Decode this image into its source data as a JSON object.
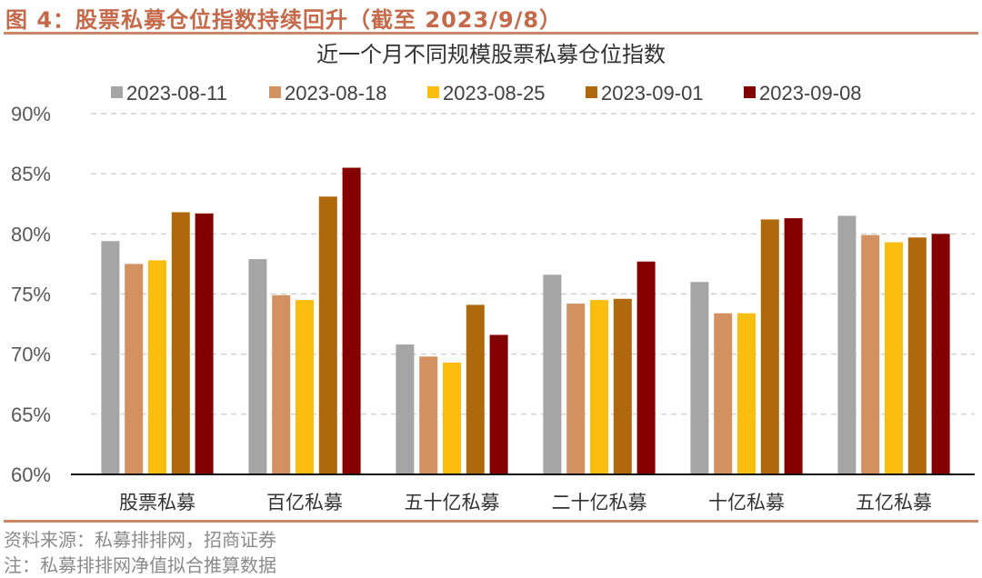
{
  "figure": {
    "title": "图 4：股票私募仓位指数持续回升（截至 2023/9/8）",
    "source": "资料来源：私募排排网，招商证券",
    "note": "注：私募排排网净值拟合推算数据"
  },
  "chart_data": {
    "type": "bar",
    "title": "近一个月不同规模股票私募仓位指数",
    "xlabel": "",
    "ylabel": "",
    "ylim": [
      60,
      90
    ],
    "yticks": [
      60,
      65,
      70,
      75,
      80,
      85,
      90
    ],
    "ytick_labels": [
      "60%",
      "65%",
      "70%",
      "75%",
      "80%",
      "85%",
      "90%"
    ],
    "grid": true,
    "legend_position": "top",
    "categories": [
      "股票私募",
      "百亿私募",
      "五十亿私募",
      "二十亿私募",
      "十亿私募",
      "五亿私募"
    ],
    "series": [
      {
        "name": "2023-08-11",
        "color": "#a5a5a5",
        "values": [
          79.4,
          77.9,
          70.8,
          76.6,
          76.0,
          81.5
        ]
      },
      {
        "name": "2023-08-18",
        "color": "#d39162",
        "values": [
          77.5,
          74.9,
          69.8,
          74.2,
          73.4,
          79.9
        ]
      },
      {
        "name": "2023-08-25",
        "color": "#fbbd0e",
        "values": [
          77.8,
          74.5,
          69.3,
          74.5,
          73.4,
          79.3
        ]
      },
      {
        "name": "2023-09-01",
        "color": "#b0680c",
        "values": [
          81.8,
          83.1,
          74.1,
          74.6,
          81.2,
          79.7
        ]
      },
      {
        "name": "2023-09-08",
        "color": "#840000",
        "values": [
          81.7,
          85.5,
          71.6,
          77.7,
          81.3,
          80.0
        ]
      }
    ]
  }
}
